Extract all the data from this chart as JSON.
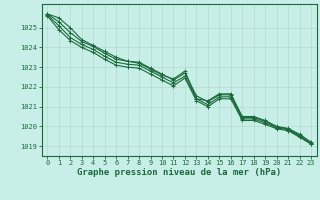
{
  "xlabel": "Graphe pression niveau de la mer (hPa)",
  "background_color": "#c8eee8",
  "plot_bg_color": "#c8eee8",
  "grid_color_v": "#b8d8cc",
  "grid_color_h": "#b8d8cc",
  "line_color": "#1a6b3a",
  "spine_color": "#1a6b3a",
  "ylim": [
    1018.5,
    1026.2
  ],
  "xlim": [
    -0.5,
    23.5
  ],
  "xticks": [
    0,
    1,
    2,
    3,
    4,
    5,
    6,
    7,
    8,
    9,
    10,
    11,
    12,
    13,
    14,
    15,
    16,
    17,
    18,
    19,
    20,
    21,
    22,
    23
  ],
  "yticks": [
    1019,
    1020,
    1021,
    1022,
    1023,
    1024,
    1025
  ],
  "series": [
    [
      1025.7,
      1025.5,
      1025.0,
      1024.4,
      1024.1,
      1023.8,
      1023.5,
      1023.3,
      1023.2,
      1022.9,
      1022.6,
      1022.4,
      1022.8,
      1021.4,
      1021.3,
      1021.65,
      1021.65,
      1020.5,
      1020.5,
      1020.3,
      1020.0,
      1019.9,
      1019.6,
      1019.2
    ],
    [
      1025.7,
      1025.3,
      1024.75,
      1024.3,
      1024.05,
      1023.7,
      1023.4,
      1023.3,
      1023.25,
      1022.95,
      1022.65,
      1022.35,
      1022.7,
      1021.55,
      1021.25,
      1021.6,
      1021.6,
      1020.45,
      1020.45,
      1020.25,
      1019.97,
      1019.87,
      1019.55,
      1019.17
    ],
    [
      1025.65,
      1025.1,
      1024.5,
      1024.15,
      1023.9,
      1023.55,
      1023.25,
      1023.15,
      1023.1,
      1022.8,
      1022.5,
      1022.2,
      1022.55,
      1021.4,
      1021.1,
      1021.5,
      1021.5,
      1020.38,
      1020.38,
      1020.18,
      1019.93,
      1019.83,
      1019.5,
      1019.13
    ],
    [
      1025.6,
      1024.9,
      1024.35,
      1024.0,
      1023.75,
      1023.4,
      1023.1,
      1023.0,
      1022.95,
      1022.65,
      1022.35,
      1022.05,
      1022.45,
      1021.3,
      1021.0,
      1021.4,
      1021.4,
      1020.3,
      1020.3,
      1020.1,
      1019.88,
      1019.78,
      1019.45,
      1019.1
    ]
  ],
  "marker": "+",
  "markersize": 3.5,
  "linewidth": 0.8,
  "tick_fontsize": 5.0,
  "xlabel_fontsize": 6.5
}
